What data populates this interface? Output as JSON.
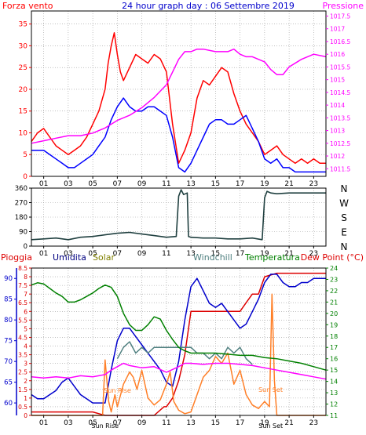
{
  "chart_data": [
    {
      "type": "line",
      "title": "24 hour graph day : 06 Settembre 2019",
      "left_label": "Forza vento",
      "right_label": "Pressione",
      "x_ticks": [
        "01",
        "03",
        "05",
        "07",
        "09",
        "11",
        "13",
        "15",
        "17",
        "19",
        "21",
        "23"
      ],
      "xlim": [
        0,
        24
      ],
      "y_left_ticks": [
        "0",
        "5",
        "10",
        "15",
        "20",
        "25",
        "30",
        "35"
      ],
      "ylim_left": [
        0,
        38
      ],
      "y_right_ticks": [
        "1011.5",
        "1012",
        "1012.5",
        "1013",
        "1013.5",
        "1014",
        "1014.5",
        "1015",
        "1015.5",
        "1016",
        "1016.5",
        "1017",
        "1017.5"
      ],
      "ylim_right": [
        1011.2,
        1017.7
      ],
      "series": [
        {
          "color": "#ff0000",
          "axis": "left",
          "x": [
            0,
            0.5,
            1,
            1.5,
            2,
            2.5,
            3,
            3.5,
            4,
            4.5,
            5,
            5.5,
            6,
            6.25,
            6.5,
            6.75,
            7,
            7.25,
            7.5,
            8,
            8.5,
            9,
            9.5,
            10,
            10.5,
            11,
            11.5,
            12,
            12.5,
            13,
            13.5,
            14,
            14.5,
            15,
            15.5,
            16,
            16.5,
            17,
            17.5,
            18,
            18.5,
            19,
            19.5,
            20,
            20.5,
            21,
            21.5,
            22,
            22.5,
            23,
            23.5,
            24
          ],
          "values": [
            8,
            10,
            11,
            9,
            7,
            6,
            5,
            6,
            7,
            9,
            12,
            15,
            20,
            26,
            30,
            33,
            28,
            24,
            22,
            25,
            28,
            27,
            26,
            28,
            27,
            24,
            12,
            3,
            6,
            10,
            18,
            22,
            21,
            23,
            25,
            24,
            19,
            15,
            12,
            10,
            8,
            5,
            6,
            7,
            5,
            4,
            3,
            4,
            3,
            4,
            3,
            3
          ]
        },
        {
          "color": "#0000ff",
          "axis": "left",
          "x": [
            0,
            0.5,
            1,
            1.5,
            2,
            2.5,
            3,
            3.5,
            4,
            4.5,
            5,
            5.5,
            6,
            6.5,
            7,
            7.5,
            8,
            8.5,
            9,
            9.5,
            10,
            10.5,
            11,
            11.5,
            12,
            12.5,
            13,
            13.5,
            14,
            14.5,
            15,
            15.5,
            16,
            16.5,
            17,
            17.5,
            18,
            18.5,
            19,
            19.5,
            20,
            20.5,
            21,
            21.5,
            22,
            22.5,
            23,
            23.5,
            24
          ],
          "values": [
            6,
            6,
            6,
            5,
            4,
            3,
            2,
            2,
            3,
            4,
            5,
            7,
            9,
            13,
            16,
            18,
            16,
            15,
            15,
            16,
            16,
            15,
            14,
            9,
            2,
            1,
            3,
            6,
            9,
            12,
            13,
            13,
            12,
            12,
            13,
            14,
            11,
            8,
            4,
            3,
            4,
            2,
            2,
            1,
            1,
            1,
            1,
            1,
            1
          ]
        },
        {
          "color": "#ff00ff",
          "axis": "right",
          "x": [
            0,
            1,
            2,
            3,
            4,
            5,
            6,
            7,
            8,
            9,
            10,
            11,
            11.5,
            12,
            12.5,
            13,
            13.5,
            14,
            15,
            16,
            16.5,
            17,
            17.5,
            18,
            18.5,
            19,
            19.5,
            20,
            20.5,
            21,
            22,
            23,
            24
          ],
          "values": [
            1012.5,
            1012.6,
            1012.7,
            1012.8,
            1012.8,
            1012.9,
            1013.1,
            1013.4,
            1013.6,
            1013.9,
            1014.3,
            1014.8,
            1015.3,
            1015.8,
            1016.1,
            1016.1,
            1016.2,
            1016.2,
            1016.1,
            1016.1,
            1016.2,
            1016.0,
            1015.9,
            1015.9,
            1015.8,
            1015.7,
            1015.4,
            1015.2,
            1015.2,
            1015.5,
            1015.8,
            1016.0,
            1015.9
          ]
        }
      ]
    },
    {
      "type": "line",
      "x_ticks": [
        "01",
        "03",
        "05",
        "07",
        "09",
        "11",
        "13",
        "15",
        "17",
        "19",
        "21",
        "23"
      ],
      "xlim": [
        0,
        24
      ],
      "y_left_ticks": [
        "0",
        "90",
        "180",
        "270",
        "360"
      ],
      "ylim_left": [
        0,
        360
      ],
      "right_labels": [
        "N",
        "W",
        "S",
        "E",
        "N"
      ],
      "series": [
        {
          "color": "#204040",
          "x": [
            0,
            1,
            2,
            3,
            4,
            5,
            6,
            7,
            8,
            9,
            10,
            11,
            11.8,
            12,
            12.2,
            12.4,
            12.7,
            12.8,
            13,
            14,
            15,
            16,
            17,
            18,
            18.8,
            19,
            19.2,
            19.5,
            20,
            21,
            22,
            23,
            24
          ],
          "values": [
            40,
            45,
            50,
            40,
            55,
            60,
            70,
            80,
            85,
            75,
            65,
            55,
            60,
            310,
            350,
            320,
            330,
            60,
            55,
            50,
            50,
            45,
            45,
            50,
            40,
            300,
            340,
            330,
            325,
            330,
            330,
            330,
            330
          ]
        }
      ]
    },
    {
      "type": "line",
      "legend": [
        "Pioggia",
        "Umidita",
        "Solar",
        "Windchill",
        "Temperatura",
        "Dew Point (°C)"
      ],
      "x_ticks": [
        "01",
        "03",
        "05",
        "07",
        "09",
        "11",
        "13",
        "15",
        "17",
        "19",
        "21",
        "23"
      ],
      "x_tick_positions": [
        1,
        3,
        5,
        7,
        9,
        11,
        13,
        15,
        17,
        19,
        21,
        23
      ],
      "xlim": [
        0,
        24
      ],
      "special_x_labels": [
        "Sun Rise",
        "Sun Set"
      ],
      "annotations": [
        "Sun Rise",
        "Sun Set"
      ],
      "humidity_ticks": [
        "60",
        "65",
        "70",
        "75",
        "80",
        "85",
        "90"
      ],
      "ylim_humidity": [
        57,
        92.5
      ],
      "rain_ticks": [
        "0",
        "0.5",
        "1",
        "1.5",
        "2",
        "2.5",
        "3",
        "3.5",
        "4",
        "4.5",
        "5",
        "5.5",
        "6",
        "6.5",
        "7",
        "7.5",
        "8",
        "8.5"
      ],
      "ylim_rain": [
        0,
        8.5
      ],
      "temp_ticks": [
        "11",
        "12",
        "13",
        "14",
        "15",
        "16",
        "17",
        "18",
        "19",
        "20",
        "21",
        "22",
        "23",
        "24"
      ],
      "ylim_temp": [
        11,
        24
      ],
      "series": [
        {
          "name": "Pioggia",
          "color": "#dd0000",
          "axis": "rain",
          "x": [
            0,
            5,
            6,
            7,
            8,
            9,
            10,
            10.8,
            11,
            11.5,
            12,
            12.5,
            13,
            14,
            15,
            16,
            17,
            17.5,
            18,
            18.5,
            19,
            20,
            24
          ],
          "values": [
            0.2,
            0.2,
            0,
            0,
            0,
            0,
            0,
            0.5,
            0.5,
            1,
            2,
            3.5,
            6,
            6,
            6,
            6,
            6,
            6.5,
            7,
            7,
            8,
            8.2,
            8.2
          ]
        },
        {
          "name": "Umidita",
          "color": "#0000cc",
          "axis": "humidity",
          "x": [
            0,
            0.5,
            1,
            1.5,
            2,
            2.5,
            3,
            3.5,
            4,
            4.5,
            5,
            5.5,
            6,
            6.5,
            7,
            7.5,
            8,
            8.5,
            9,
            9.5,
            10,
            10.5,
            11,
            11.5,
            12,
            12.5,
            13,
            13.5,
            14,
            14.5,
            15,
            15.5,
            16,
            16.5,
            17,
            17.5,
            18,
            18.5,
            19,
            19.5,
            20,
            20.5,
            21,
            21.5,
            22,
            22.5,
            23,
            23.5,
            24
          ],
          "values": [
            62,
            61,
            61,
            62,
            63,
            65,
            66,
            64,
            62,
            61,
            60,
            60,
            60,
            68,
            75,
            78,
            78,
            76,
            74,
            72,
            70,
            68,
            65,
            64,
            70,
            80,
            88,
            90,
            87,
            84,
            83,
            84,
            82,
            80,
            78,
            79,
            82,
            85,
            89,
            91,
            91,
            89,
            88,
            88,
            89,
            89,
            90,
            90,
            90
          ]
        },
        {
          "name": "Solar",
          "color": "#ff7f27",
          "axis": "rain",
          "x": [
            0,
            5.8,
            6,
            6.3,
            6.5,
            6.8,
            7,
            7.5,
            8,
            8.3,
            8.6,
            9,
            9.5,
            10,
            10.5,
            11,
            11.3,
            11.6,
            12,
            12.5,
            13,
            13.5,
            14,
            14.5,
            15,
            15.5,
            16,
            16.5,
            17,
            17.5,
            18,
            18.5,
            19,
            19.4,
            19.6,
            19.8,
            20,
            24
          ],
          "values": [
            0,
            0,
            3.2,
            0.8,
            0.2,
            1.2,
            0.5,
            1.8,
            2.5,
            2.2,
            1.5,
            2.6,
            1,
            0.6,
            0.9,
            1.8,
            2.5,
            0.8,
            0.3,
            0.1,
            0.2,
            1.2,
            2.2,
            2.6,
            3.4,
            3.0,
            3.6,
            1.8,
            2.6,
            1.2,
            0.6,
            0.4,
            0.8,
            0.5,
            7.0,
            2.0,
            0,
            0
          ]
        },
        {
          "name": "Windchill",
          "color": "#508080",
          "axis": "temp",
          "x": [
            7,
            7.5,
            8,
            8.5,
            9,
            9.5,
            10,
            10.5,
            11,
            12,
            13,
            13.5,
            14,
            14.5,
            15,
            15.5,
            16,
            16.5,
            17,
            17.5,
            18
          ],
          "values": [
            16,
            17,
            17.5,
            16.5,
            17,
            16.5,
            17,
            17,
            17,
            17,
            17,
            16.5,
            16.5,
            16,
            16.5,
            16,
            17,
            16.5,
            17,
            16,
            15.5
          ]
        },
        {
          "name": "Temperatura",
          "color": "#008000",
          "axis": "temp",
          "x": [
            0,
            0.5,
            1,
            1.5,
            2,
            2.5,
            3,
            3.5,
            4,
            4.5,
            5,
            5.5,
            6,
            6.5,
            7,
            7.5,
            8,
            8.5,
            9,
            9.5,
            10,
            10.5,
            11,
            11.5,
            12,
            12.5,
            13,
            14,
            15,
            16,
            17,
            18,
            19,
            20,
            21,
            22,
            23,
            24
          ],
          "values": [
            22.5,
            22.7,
            22.6,
            22.2,
            21.8,
            21.5,
            21,
            21,
            21.2,
            21.5,
            21.8,
            22.2,
            22.5,
            22.3,
            21.5,
            20,
            19,
            18.5,
            18.5,
            19,
            19.7,
            19.5,
            18.5,
            17.7,
            17,
            16.7,
            16.5,
            16.5,
            16.5,
            16.4,
            16.3,
            16.3,
            16.1,
            16,
            15.8,
            15.6,
            15.3,
            15
          ]
        },
        {
          "name": "Dew Point (°C)",
          "color": "#ff00ff",
          "axis": "temp",
          "x": [
            0,
            1,
            2,
            3,
            4,
            5,
            6,
            6.5,
            7,
            7.5,
            8,
            9,
            10,
            11,
            12,
            12.5,
            13,
            14,
            15,
            16,
            17,
            18,
            19,
            20,
            21,
            22,
            23,
            24
          ],
          "values": [
            14.4,
            14.3,
            14.4,
            14.3,
            14.5,
            14.4,
            14.6,
            15,
            15.3,
            15.6,
            15.4,
            15.2,
            15.3,
            14.8,
            15.3,
            15.6,
            15.6,
            15.5,
            15.6,
            15.6,
            15.5,
            15.4,
            15.2,
            15,
            14.8,
            14.6,
            14.4,
            14.2
          ]
        }
      ]
    }
  ]
}
